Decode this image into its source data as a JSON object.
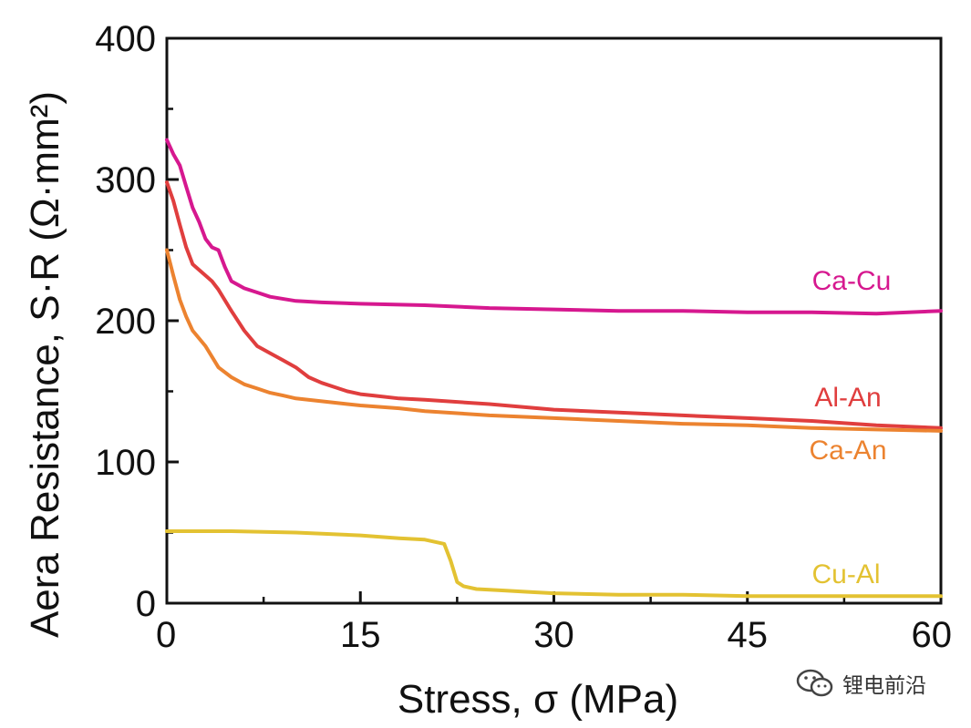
{
  "chart_data": {
    "type": "line",
    "xlabel": "Stress, σ (MPa)",
    "ylabel": "Aera Resistance, S·R (Ω·mm²)",
    "xlim": [
      0,
      60
    ],
    "ylim": [
      0,
      400
    ],
    "x_ticks": [
      0,
      15,
      30,
      45,
      60
    ],
    "y_ticks": [
      0,
      100,
      200,
      300,
      400
    ],
    "grid": false,
    "legend": "inline labels at right end of each line",
    "series": [
      {
        "name": "Ca-Cu",
        "color": "#d6188f",
        "x": [
          0,
          0.5,
          1,
          1.5,
          2,
          2.5,
          3,
          3.5,
          4,
          4.5,
          5,
          6,
          7,
          8,
          10,
          12,
          15,
          20,
          25,
          30,
          35,
          40,
          45,
          50,
          55,
          60
        ],
        "y": [
          328,
          318,
          310,
          295,
          280,
          270,
          258,
          252,
          250,
          238,
          228,
          223,
          220,
          217,
          214,
          213,
          212,
          211,
          209,
          208,
          207,
          207,
          206,
          206,
          205,
          207
        ]
      },
      {
        "name": "Al-An",
        "color": "#e03e3e",
        "x": [
          0,
          0.5,
          1,
          1.5,
          2,
          3,
          3.5,
          4,
          5,
          6,
          7,
          8,
          9,
          10,
          11,
          12,
          13,
          14,
          15,
          16,
          18,
          20,
          25,
          30,
          35,
          40,
          45,
          50,
          55,
          60
        ],
        "y": [
          298,
          285,
          268,
          252,
          240,
          232,
          228,
          222,
          207,
          193,
          182,
          177,
          172,
          167,
          160,
          156,
          153,
          150,
          148,
          147,
          145,
          144,
          141,
          137,
          135,
          133,
          131,
          129,
          126,
          124
        ]
      },
      {
        "name": "Ca-An",
        "color": "#ec8330",
        "x": [
          0,
          0.5,
          1,
          1.5,
          2,
          3,
          4,
          5,
          6,
          7,
          8,
          9,
          10,
          12,
          14,
          15,
          18,
          20,
          25,
          30,
          35,
          40,
          45,
          50,
          55,
          60
        ],
        "y": [
          250,
          232,
          215,
          203,
          193,
          182,
          167,
          160,
          155,
          152,
          149,
          147,
          145,
          143,
          141,
          140,
          138,
          136,
          133,
          131,
          129,
          127,
          126,
          124,
          123,
          122
        ]
      },
      {
        "name": "Cu-Al",
        "color": "#e3c232",
        "x": [
          0,
          5,
          10,
          15,
          18,
          20,
          21.5,
          22,
          22.5,
          23,
          24,
          26,
          28,
          30,
          35,
          40,
          45,
          50,
          55,
          60
        ],
        "y": [
          51,
          51,
          50,
          48,
          46,
          45,
          42,
          30,
          15,
          12,
          10,
          9,
          8,
          7,
          6,
          6,
          5,
          5,
          5,
          5
        ]
      }
    ]
  },
  "watermark": {
    "text": "锂电前沿",
    "icon": "wechat-icon"
  }
}
